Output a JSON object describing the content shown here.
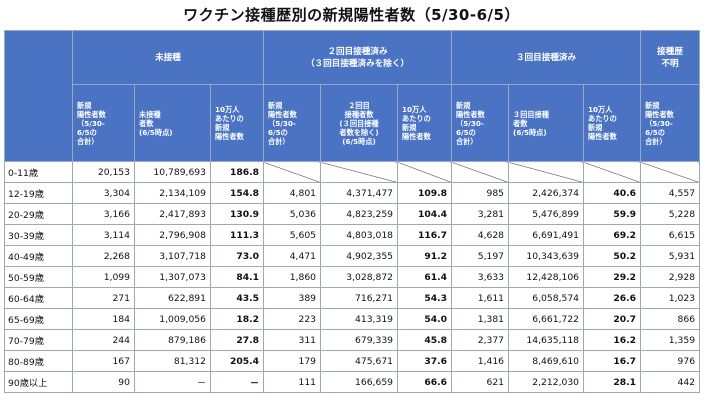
{
  "title": "ワクチン接種歴別の新規陽性者数（5/30-6/5）",
  "groups": {
    "unvacc": "未接種",
    "dose2": "２回目接種済み\n（３回目接種済みを除く）",
    "dose3": "３回目接種済み",
    "unknown": "接種歴\n不明"
  },
  "subheaders": {
    "cases": "新規\n陽性者数\n（5/30-\n6/5の\n合計）",
    "unvacc_pop": "未接種\n者数\n(6/5時点)",
    "rate": "10万人\nあたりの\n新規\n陽性者数",
    "dose2_pop": "２回目\n接種者数\n(３回目接種\n者数を除く)\n(6/5時点)",
    "dose3_pop": "３回目接種\n者数\n(6/5時点)",
    "unknown_cases": "新規\n陽性者数\n（5/30-\n6/5の\n合計）"
  },
  "rows": [
    {
      "age": "0-11歳",
      "c0": "20,153",
      "p0": "10,789,693",
      "r0": "186.8",
      "c1": "",
      "p1": "",
      "r1": "",
      "c2": "",
      "p2": "",
      "r2": "",
      "u": ""
    },
    {
      "age": "12-19歳",
      "c0": "3,304",
      "p0": "2,134,109",
      "r0": "154.8",
      "c1": "4,801",
      "p1": "4,371,477",
      "r1": "109.8",
      "c2": "985",
      "p2": "2,426,374",
      "r2": "40.6",
      "u": "4,557"
    },
    {
      "age": "20-29歳",
      "c0": "3,166",
      "p0": "2,417,893",
      "r0": "130.9",
      "c1": "5,036",
      "p1": "4,823,259",
      "r1": "104.4",
      "c2": "3,281",
      "p2": "5,476,899",
      "r2": "59.9",
      "u": "5,228"
    },
    {
      "age": "30-39歳",
      "c0": "3,114",
      "p0": "2,796,908",
      "r0": "111.3",
      "c1": "5,605",
      "p1": "4,803,018",
      "r1": "116.7",
      "c2": "4,628",
      "p2": "6,691,491",
      "r2": "69.2",
      "u": "6,615"
    },
    {
      "age": "40-49歳",
      "c0": "2,268",
      "p0": "3,107,718",
      "r0": "73.0",
      "c1": "4,471",
      "p1": "4,902,355",
      "r1": "91.2",
      "c2": "5,197",
      "p2": "10,343,639",
      "r2": "50.2",
      "u": "5,931"
    },
    {
      "age": "50-59歳",
      "c0": "1,099",
      "p0": "1,307,073",
      "r0": "84.1",
      "c1": "1,860",
      "p1": "3,028,872",
      "r1": "61.4",
      "c2": "3,633",
      "p2": "12,428,106",
      "r2": "29.2",
      "u": "2,928"
    },
    {
      "age": "60-64歳",
      "c0": "271",
      "p0": "622,891",
      "r0": "43.5",
      "c1": "389",
      "p1": "716,271",
      "r1": "54.3",
      "c2": "1,611",
      "p2": "6,058,574",
      "r2": "26.6",
      "u": "1,023"
    },
    {
      "age": "65-69歳",
      "c0": "184",
      "p0": "1,009,056",
      "r0": "18.2",
      "c1": "223",
      "p1": "413,319",
      "r1": "54.0",
      "c2": "1,381",
      "p2": "6,661,722",
      "r2": "20.7",
      "u": "866"
    },
    {
      "age": "70-79歳",
      "c0": "244",
      "p0": "879,186",
      "r0": "27.8",
      "c1": "311",
      "p1": "679,339",
      "r1": "45.8",
      "c2": "2,377",
      "p2": "14,635,118",
      "r2": "16.2",
      "u": "1,359"
    },
    {
      "age": "80-89歳",
      "c0": "167",
      "p0": "81,312",
      "r0": "205.4",
      "c1": "179",
      "p1": "475,671",
      "r1": "37.6",
      "c2": "1,416",
      "p2": "8,469,610",
      "r2": "16.7",
      "u": "976"
    },
    {
      "age": "90歳以上",
      "c0": "90",
      "p0": "－",
      "r0": "－",
      "c1": "111",
      "p1": "166,659",
      "r1": "66.6",
      "c2": "621",
      "p2": "2,212,030",
      "r2": "28.1",
      "u": "442"
    }
  ]
}
